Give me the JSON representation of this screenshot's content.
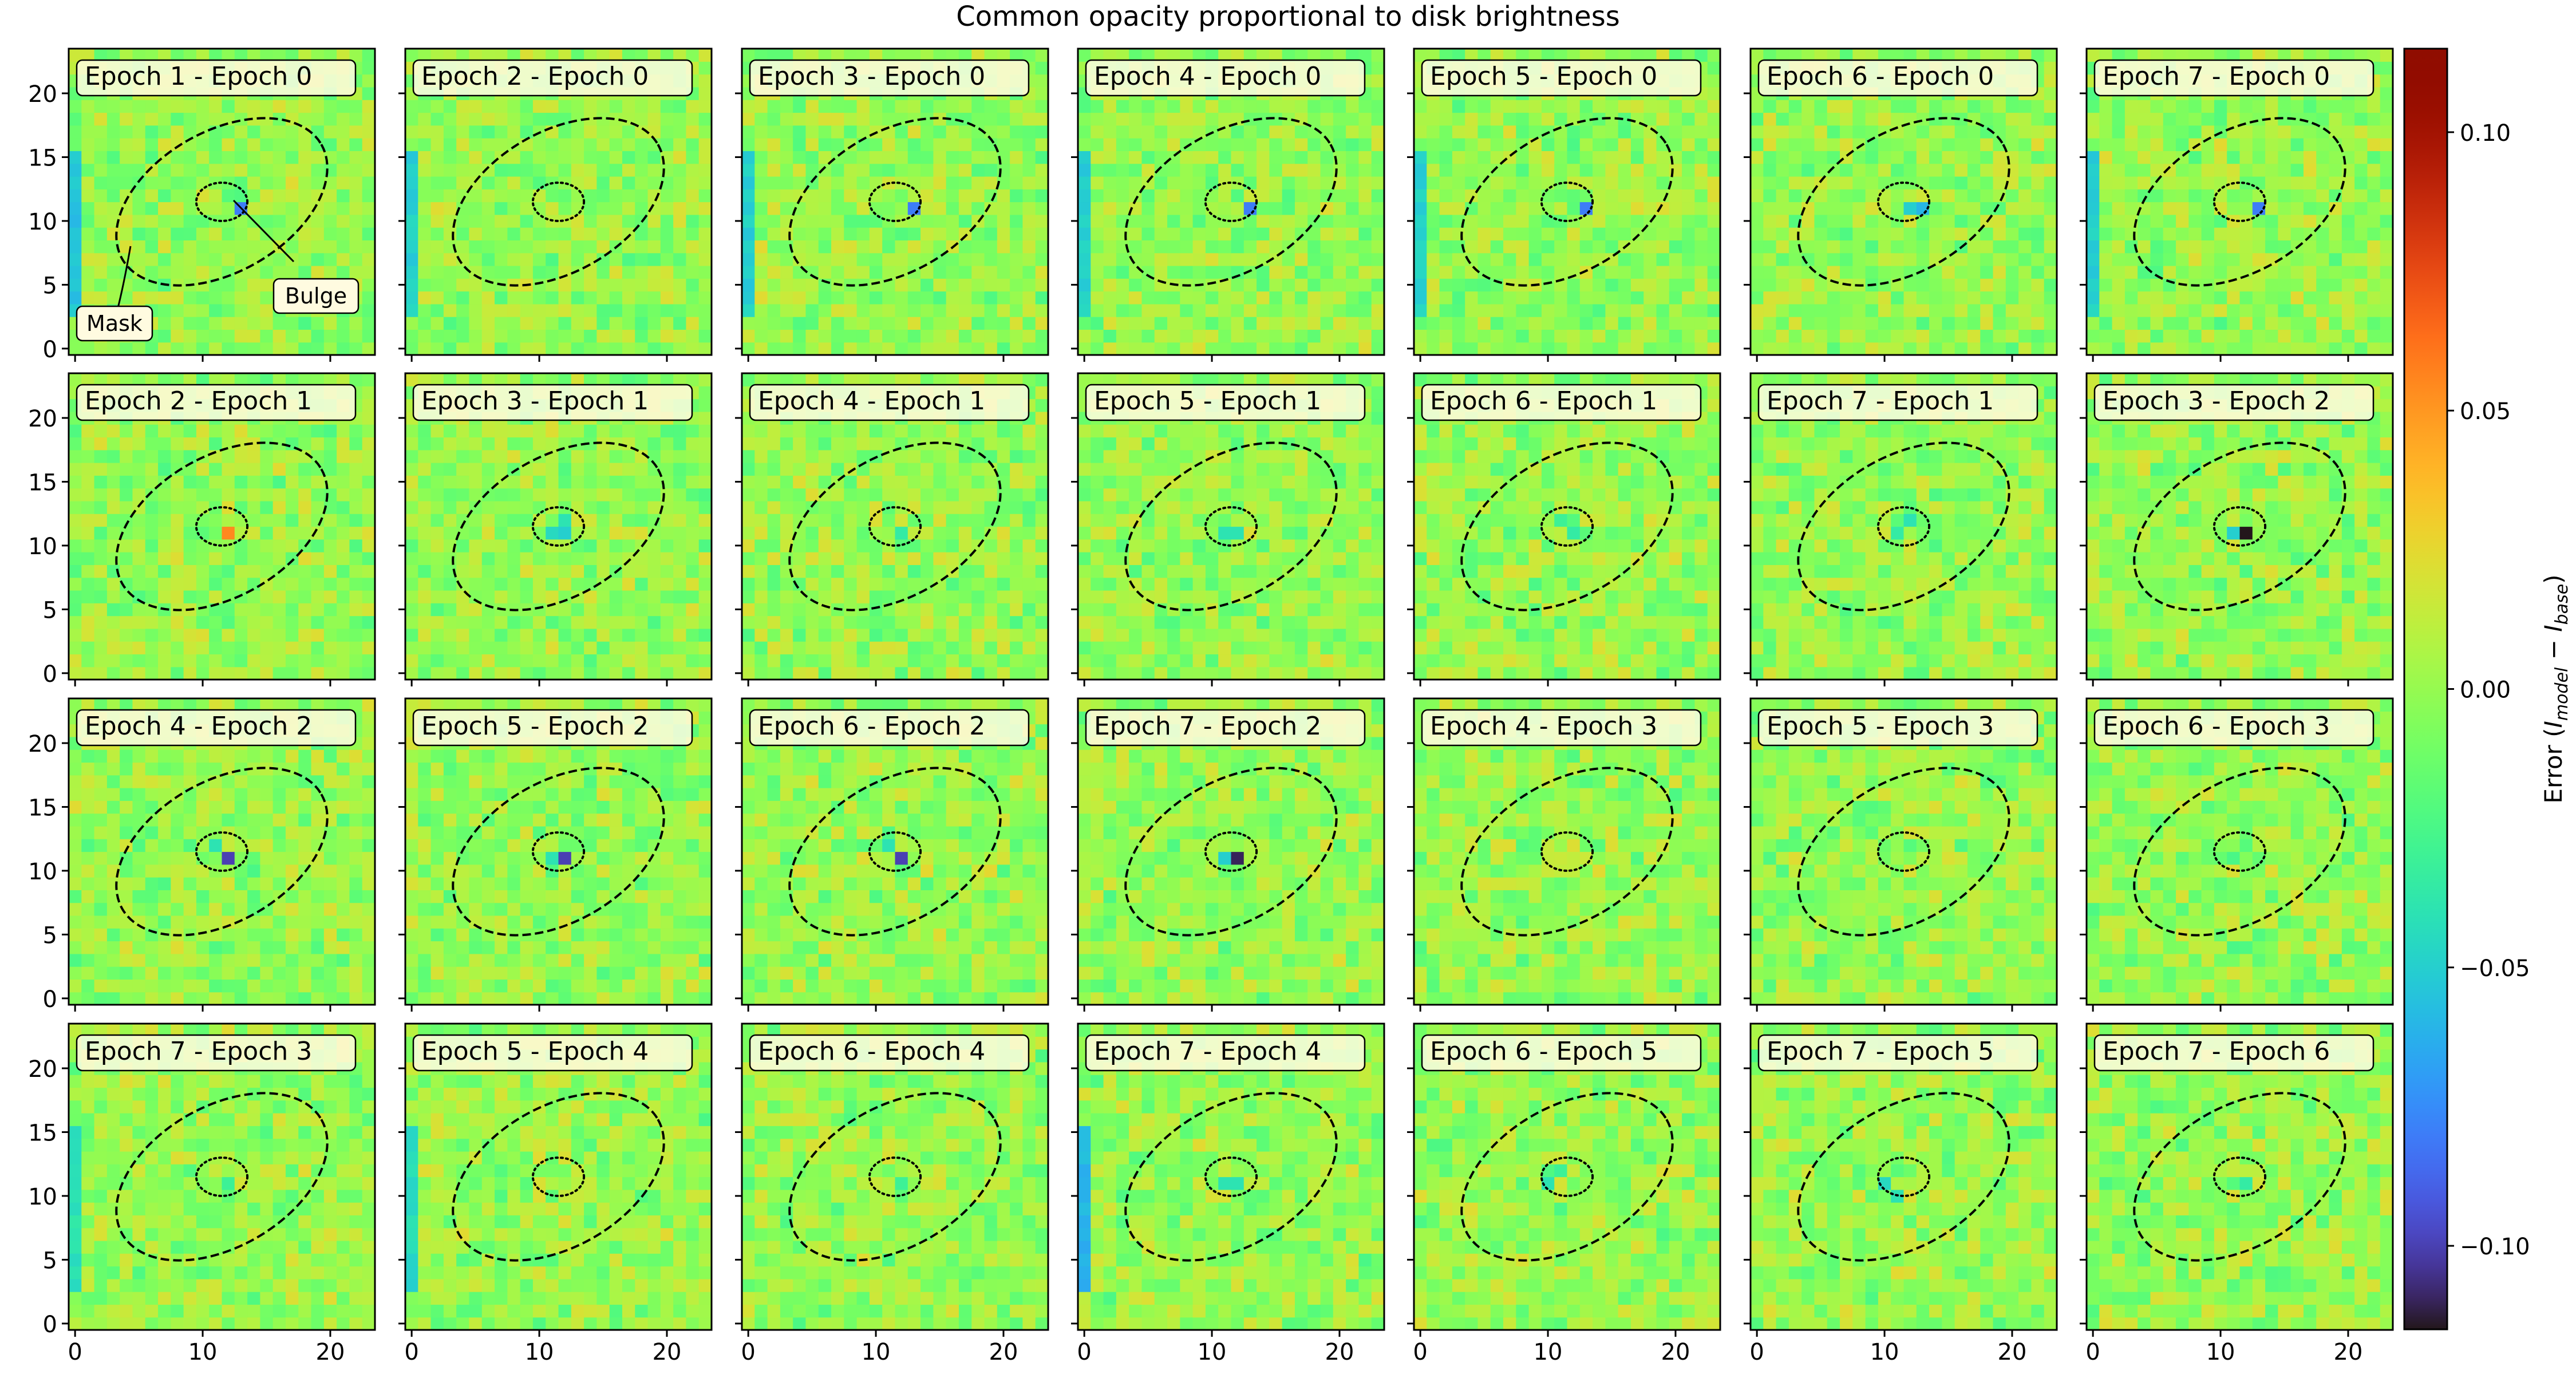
{
  "figure": {
    "title": "Common opacity proportional to disk brightness"
  },
  "colorbar": {
    "label": "Error (I_model − I_base)",
    "label_parts": {
      "prefix": "Error (",
      "i1": "I",
      "sub1": "model",
      "minus": " − ",
      "i2": "I",
      "sub2": "base",
      "suffix": ")"
    },
    "ticks": [
      0.1,
      0.05,
      0.0,
      -0.05,
      -0.1
    ],
    "tick_labels": [
      "0.10",
      "0.05",
      "0.00",
      "−0.05",
      "−0.10"
    ],
    "range": [
      -0.115,
      0.115
    ],
    "colormap": "turbo"
  },
  "annotations": {
    "mask_label": "Mask",
    "bulge_label": "Bulge"
  },
  "chart_data": {
    "type": "heatmap",
    "grid_size": [
      24,
      24
    ],
    "xlim": [
      -0.5,
      23.5
    ],
    "ylim": [
      -0.5,
      23.5
    ],
    "x_ticks": [
      0,
      10,
      20
    ],
    "y_ticks": [
      0,
      5,
      10,
      15,
      20
    ],
    "x_tick_labels": [
      "0",
      "10",
      "20"
    ],
    "y_tick_labels": [
      "0",
      "5",
      "10",
      "15",
      "20"
    ],
    "vmin": -0.115,
    "vmax": 0.115,
    "ellipses": {
      "mask": {
        "center": [
          11.5,
          11.5
        ],
        "width": 18,
        "height": 11,
        "angle_deg": 30,
        "style": "dashed"
      },
      "bulge": {
        "center": [
          11.5,
          11.5
        ],
        "width": 4,
        "height": 3,
        "angle_deg": 0,
        "style": "dotted"
      }
    },
    "panels": [
      {
        "title": "Epoch 1 - Epoch 0",
        "hot": [
          [
            12.5,
            11,
            -0.06
          ],
          [
            13,
            11,
            -0.08
          ]
        ],
        "left_stripe": -0.055
      },
      {
        "title": "Epoch 2 - Epoch 0",
        "hot": [],
        "left_stripe": -0.05
      },
      {
        "title": "Epoch 3 - Epoch 0",
        "hot": [
          [
            12.5,
            11,
            -0.06
          ],
          [
            13,
            11,
            -0.08
          ]
        ],
        "left_stripe": -0.05
      },
      {
        "title": "Epoch 4 - Epoch 0",
        "hot": [
          [
            12.5,
            11,
            -0.06
          ],
          [
            13,
            11,
            -0.08
          ]
        ],
        "left_stripe": -0.05
      },
      {
        "title": "Epoch 5 - Epoch 0",
        "hot": [
          [
            12.5,
            11,
            -0.06
          ],
          [
            13,
            11,
            -0.08
          ]
        ],
        "left_stripe": -0.05
      },
      {
        "title": "Epoch 6 - Epoch 0",
        "hot": [
          [
            12,
            11,
            -0.05
          ],
          [
            13,
            11,
            -0.06
          ]
        ],
        "left_stripe": null
      },
      {
        "title": "Epoch 7 - Epoch 0",
        "hot": [
          [
            12.5,
            11,
            -0.06
          ],
          [
            13,
            11,
            -0.08
          ]
        ],
        "left_stripe": -0.05
      },
      {
        "title": "Epoch 2 - Epoch 1",
        "hot": [
          [
            12,
            11,
            0.055
          ]
        ],
        "left_stripe": null
      },
      {
        "title": "Epoch 3 - Epoch 1",
        "hot": [
          [
            11,
            11,
            -0.045
          ],
          [
            12,
            11,
            -0.05
          ],
          [
            12,
            12,
            -0.04
          ]
        ],
        "left_stripe": null
      },
      {
        "title": "Epoch 4 - Epoch 1",
        "hot": [
          [
            12,
            11,
            -0.035
          ]
        ],
        "left_stripe": null
      },
      {
        "title": "Epoch 5 - Epoch 1",
        "hot": [
          [
            11,
            11,
            -0.04
          ],
          [
            12,
            11,
            -0.04
          ]
        ],
        "left_stripe": null
      },
      {
        "title": "Epoch 6 - Epoch 1",
        "hot": [
          [
            12,
            11,
            -0.035
          ],
          [
            11,
            12,
            -0.03
          ]
        ],
        "left_stripe": null
      },
      {
        "title": "Epoch 7 - Epoch 1",
        "hot": [
          [
            12,
            12,
            -0.04
          ],
          [
            11,
            11,
            -0.035
          ]
        ],
        "left_stripe": null
      },
      {
        "title": "Epoch 3 - Epoch 2",
        "hot": [
          [
            11,
            11,
            -0.05
          ],
          [
            12,
            11,
            -0.115
          ]
        ],
        "left_stripe": null
      },
      {
        "title": "Epoch 4 - Epoch 2",
        "hot": [
          [
            12,
            11,
            -0.1
          ],
          [
            11,
            12,
            -0.04
          ]
        ],
        "left_stripe": null
      },
      {
        "title": "Epoch 5 - Epoch 2",
        "hot": [
          [
            12,
            11,
            -0.1
          ],
          [
            11,
            11,
            -0.04
          ]
        ],
        "left_stripe": null
      },
      {
        "title": "Epoch 6 - Epoch 2",
        "hot": [
          [
            12,
            11,
            -0.1
          ],
          [
            11,
            12,
            -0.04
          ]
        ],
        "left_stripe": null
      },
      {
        "title": "Epoch 7 - Epoch 2",
        "hot": [
          [
            12,
            11,
            -0.11
          ],
          [
            11,
            11,
            -0.05
          ]
        ],
        "left_stripe": null
      },
      {
        "title": "Epoch 4 - Epoch 3",
        "hot": [],
        "left_stripe": null
      },
      {
        "title": "Epoch 5 - Epoch 3",
        "hot": [
          [
            12,
            12,
            -0.02
          ]
        ],
        "left_stripe": null
      },
      {
        "title": "Epoch 6 - Epoch 3",
        "hot": [
          [
            12,
            12,
            -0.02
          ]
        ],
        "left_stripe": null
      },
      {
        "title": "Epoch 7 - Epoch 3",
        "hot": [
          [
            12,
            11,
            -0.03
          ]
        ],
        "left_stripe": -0.04
      },
      {
        "title": "Epoch 5 - Epoch 4",
        "hot": [],
        "left_stripe": -0.045
      },
      {
        "title": "Epoch 6 - Epoch 4",
        "hot": [
          [
            12,
            11,
            -0.03
          ]
        ],
        "left_stripe": null
      },
      {
        "title": "Epoch 7 - Epoch 4",
        "hot": [
          [
            11,
            11,
            -0.04
          ],
          [
            12,
            11,
            -0.04
          ]
        ],
        "left_stripe": -0.06
      },
      {
        "title": "Epoch 6 - Epoch 5",
        "hot": [
          [
            10,
            11,
            -0.04
          ],
          [
            11,
            12,
            -0.03
          ]
        ],
        "left_stripe": null
      },
      {
        "title": "Epoch 7 - Epoch 5",
        "hot": [
          [
            10,
            11,
            -0.045
          ],
          [
            11,
            10,
            -0.04
          ]
        ],
        "left_stripe": null
      },
      {
        "title": "Epoch 7 - Epoch 6",
        "hot": [
          [
            12,
            11,
            -0.035
          ]
        ],
        "left_stripe": null
      }
    ]
  }
}
